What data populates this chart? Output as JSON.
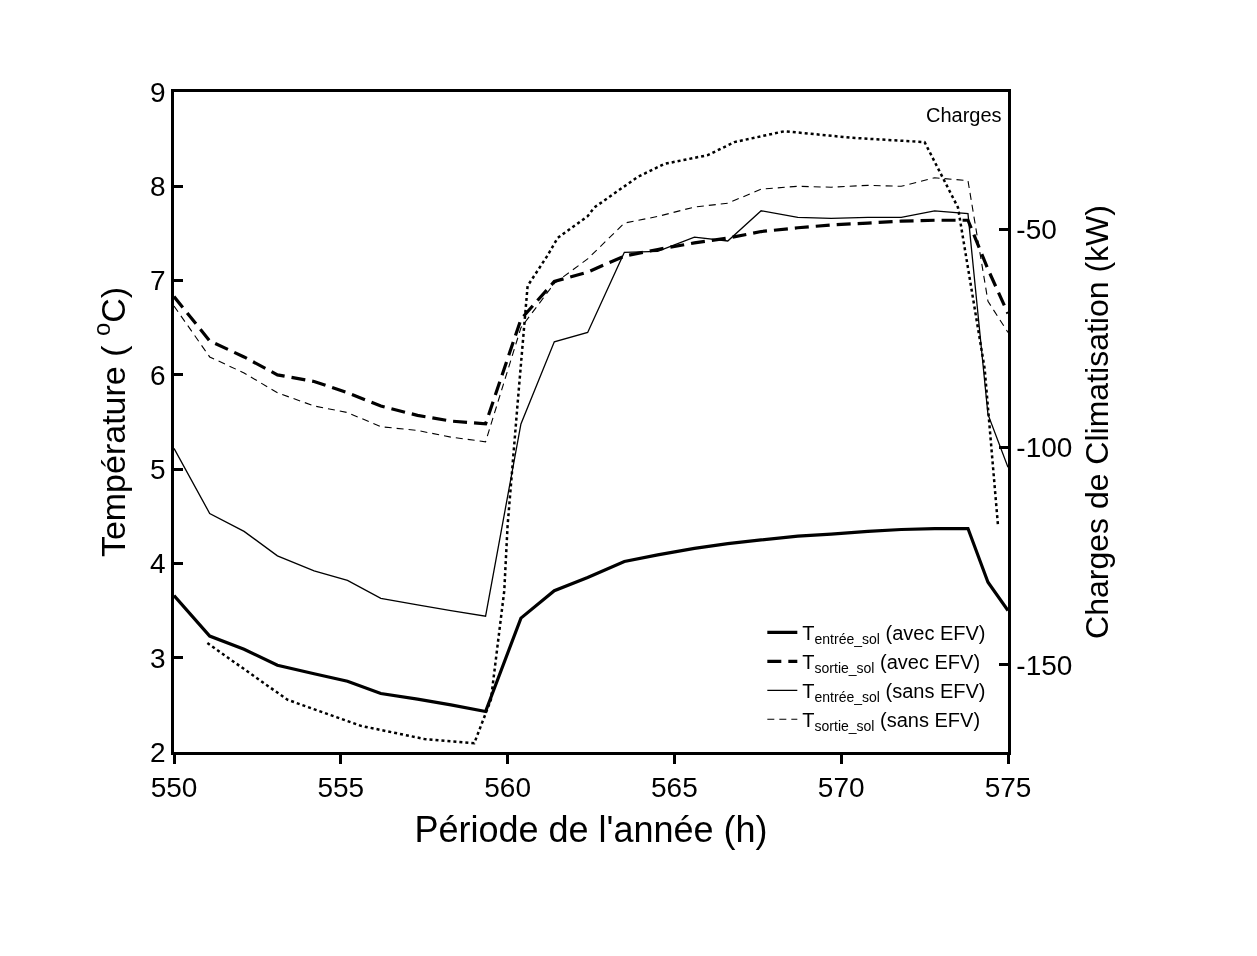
{
  "chart_data": {
    "type": "line",
    "xlabel": "Période de l'année (h)",
    "ylabel": "Température ( $^{o}$C)",
    "y2label": "Charges de Climatisation (kW)",
    "x": [
      550,
      551.07,
      552.1,
      553.1,
      554.2,
      555.2,
      556.2,
      557.3,
      558.3,
      559.34,
      560.4,
      561.4,
      562.4,
      563.5,
      564.5,
      565.6,
      566.6,
      567.6,
      568.7,
      569.7,
      570.8,
      571.8,
      572.8,
      573.8,
      574.4,
      575
    ],
    "series": [
      {
        "name": "T$_{entrée_sol}$ (avec EFV)",
        "color": "#000000",
        "line_style": "solid",
        "values": [
          3.66,
          3.23,
          3.09,
          2.92,
          2.83,
          2.75,
          2.62,
          2.56,
          2.5,
          2.43,
          3.42,
          3.71,
          3.85,
          4.02,
          4.09,
          4.16,
          4.21,
          4.25,
          4.29,
          4.31,
          4.34,
          4.36,
          4.37,
          4.37,
          3.8,
          3.5
        ]
      },
      {
        "name": "T$_{sortie_sol}$ (avec EFV)",
        "color": "#000000",
        "line_style": "dashed",
        "values": [
          6.83,
          6.36,
          6.19,
          6.0,
          5.93,
          5.81,
          5.67,
          5.57,
          5.51,
          5.48,
          6.59,
          6.99,
          7.09,
          7.26,
          7.33,
          7.4,
          7.45,
          7.52,
          7.56,
          7.59,
          7.61,
          7.63,
          7.64,
          7.64,
          7.12,
          6.65
        ]
      },
      {
        "name": "T$_{entrée_sol}$ (sans EFV)",
        "color": "#000000",
        "line_style": "solid",
        "values": [
          5.22,
          4.53,
          4.34,
          4.08,
          3.92,
          3.82,
          3.63,
          3.56,
          3.5,
          3.44,
          5.48,
          6.35,
          6.45,
          7.3,
          7.31,
          7.46,
          7.42,
          7.74,
          7.67,
          7.66,
          7.67,
          7.67,
          7.74,
          7.71,
          5.58,
          5.02
        ]
      },
      {
        "name": "T$_{sortie_sol}$ (sans EFV)",
        "color": "#000000",
        "line_style": "dashed",
        "values": [
          6.73,
          6.19,
          6.02,
          5.81,
          5.67,
          5.6,
          5.45,
          5.41,
          5.34,
          5.29,
          6.5,
          6.97,
          7.23,
          7.61,
          7.68,
          7.78,
          7.82,
          7.97,
          8.0,
          7.99,
          8.01,
          8.0,
          8.09,
          8.06,
          6.78,
          6.45
        ]
      },
      {
        "name": "Charges",
        "color": "#000000",
        "line_style": "dotted",
        "axis": "y2",
        "x": [
          551,
          553.4,
          555.6,
          557.5,
          559.0,
          559.5,
          559.9,
          560.0,
          560.3,
          560.6,
          561.2,
          561.5,
          562.4,
          562.6,
          563.9,
          564.7,
          566.0,
          566.8,
          568.3,
          570.3,
          572.5,
          573.5,
          574.3,
          574.7
        ],
        "values": [
          -145,
          -158,
          -164,
          -167,
          -168,
          -158,
          -133,
          -118,
          -90,
          -63,
          -56,
          -52,
          -47,
          -45,
          -38,
          -35,
          -33,
          -30,
          -27.5,
          -29,
          -30,
          -45,
          -82,
          -118
        ]
      }
    ],
    "xlim": [
      550,
      575
    ],
    "xticks": [
      550,
      555,
      560,
      565,
      570,
      575
    ],
    "ylim": [
      2,
      9
    ],
    "yticks": [
      2,
      3,
      4,
      5,
      6,
      7,
      8,
      9
    ],
    "y2lim": [
      -170,
      -18.5
    ],
    "y2ticks": [
      -50,
      -100,
      -150
    ],
    "grid": false,
    "legend": "bottom right",
    "marker": "none"
  }
}
